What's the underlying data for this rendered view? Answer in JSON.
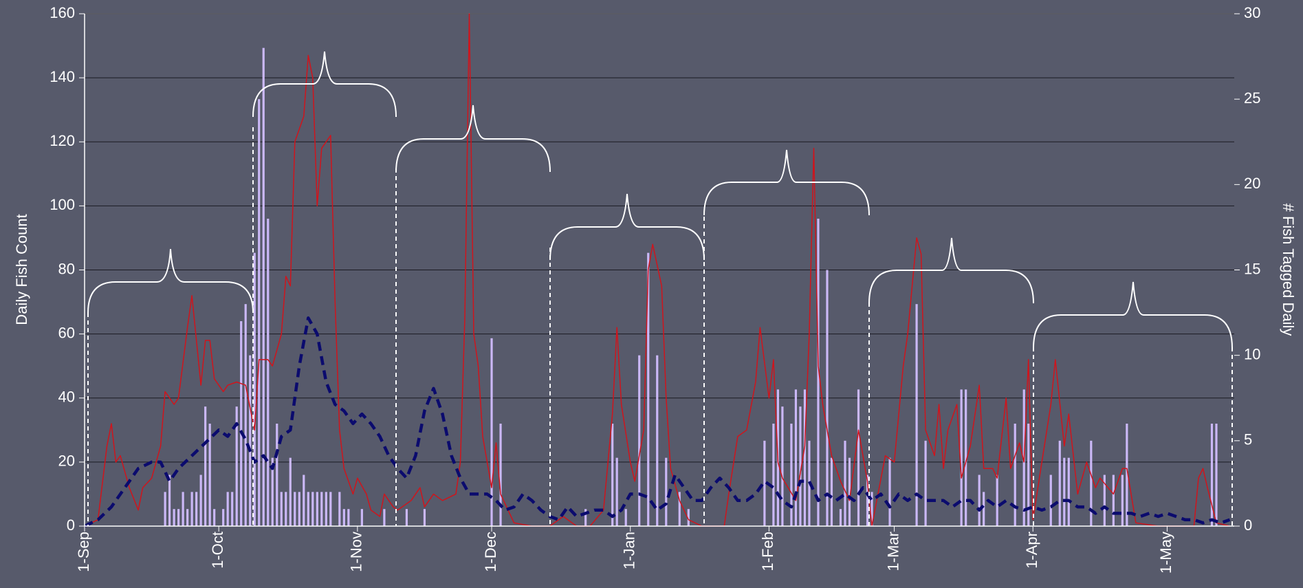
{
  "chart_data": {
    "type": "combo",
    "ylabel": "Daily Fish Count",
    "y2label": "# Fish Tagged Daily",
    "ylim": [
      0,
      160
    ],
    "yticks": [
      0,
      20,
      40,
      60,
      80,
      100,
      120,
      140,
      160
    ],
    "y2lim": [
      0,
      30
    ],
    "y2ticks": [
      0,
      5,
      10,
      15,
      20,
      25,
      30
    ],
    "xlim": [
      0,
      257
    ],
    "xticks": [
      {
        "value": 0,
        "label": "1-Sep"
      },
      {
        "value": 30,
        "label": "1-Oct"
      },
      {
        "value": 61,
        "label": "1-Nov"
      },
      {
        "value": 91,
        "label": "1-Dec"
      },
      {
        "value": 122,
        "label": "1-Jan"
      },
      {
        "value": 153,
        "label": "1-Feb"
      },
      {
        "value": 181,
        "label": "1-Mar"
      },
      {
        "value": 212,
        "label": "1-Apr"
      },
      {
        "value": 242,
        "label": "1-May"
      }
    ],
    "grid": true,
    "series": [
      {
        "type": "bar",
        "axis": "y2",
        "color": "#cbb8f7",
        "x": [
          18,
          19,
          20,
          21,
          22,
          23,
          24,
          25,
          26,
          27,
          28,
          29,
          31,
          32,
          33,
          34,
          35,
          36,
          37,
          38,
          39,
          40,
          41,
          42,
          43,
          44,
          45,
          46,
          47,
          48,
          49,
          50,
          51,
          52,
          53,
          54,
          55,
          57,
          58,
          59,
          62,
          67,
          72,
          76,
          91,
          93,
          112,
          118,
          119,
          121,
          124,
          126,
          128,
          130,
          133,
          135,
          152,
          154,
          155,
          156,
          158,
          159,
          160,
          161,
          162,
          164,
          166,
          167,
          169,
          170,
          171,
          173,
          175,
          176,
          180,
          186,
          188,
          196,
          197,
          200,
          201,
          204,
          208,
          210,
          211,
          216,
          218,
          219,
          220,
          225,
          228,
          230,
          232,
          233,
          252,
          253
        ],
        "values": [
          2,
          3,
          1,
          1,
          2,
          1,
          2,
          2,
          3,
          7,
          6,
          1,
          1,
          2,
          2,
          7,
          12,
          13,
          10,
          16,
          25,
          28,
          18,
          4,
          6,
          2,
          2,
          4,
          2,
          2,
          3,
          2,
          2,
          2,
          2,
          2,
          2,
          2,
          1,
          1,
          1,
          1,
          1,
          1,
          11,
          6,
          1,
          6,
          4,
          1,
          10,
          16,
          10,
          4,
          2,
          1,
          5,
          6,
          8,
          7,
          6,
          8,
          7,
          8,
          5,
          18,
          15,
          4,
          1,
          5,
          4,
          8,
          3,
          2,
          4,
          13,
          5,
          8,
          8,
          3,
          2,
          3,
          6,
          8,
          6,
          3,
          5,
          4,
          4,
          5,
          3,
          3,
          3,
          6,
          6,
          6
        ]
      },
      {
        "type": "line",
        "color": "#d0141c",
        "width": 1.5,
        "x": [
          0,
          3,
          5,
          6,
          7,
          8,
          10,
          12,
          13,
          15,
          17,
          18,
          20,
          21,
          23,
          24,
          26,
          27,
          28,
          29,
          31,
          32,
          34,
          36,
          38,
          39,
          41,
          42,
          44,
          45,
          46,
          47,
          48,
          49,
          50,
          51,
          52,
          53,
          55,
          56,
          57,
          58,
          60,
          61,
          63,
          64,
          66,
          67,
          69,
          70,
          73,
          75,
          76,
          78,
          80,
          83,
          84,
          85,
          86,
          87,
          88,
          89,
          91,
          92,
          93,
          96,
          100,
          104,
          107,
          110,
          113,
          116,
          118,
          119,
          120,
          122,
          123,
          125,
          126,
          127,
          129,
          130,
          131,
          133,
          135,
          138,
          143,
          144,
          146,
          148,
          150,
          151,
          153,
          154,
          155,
          156,
          159,
          161,
          162,
          163,
          164,
          165,
          167,
          169,
          171,
          173,
          175,
          176,
          179,
          181,
          183,
          184,
          186,
          187,
          188,
          190,
          191,
          192,
          193,
          195,
          196,
          198,
          200,
          201,
          203,
          204,
          206,
          207,
          209,
          210,
          211,
          212,
          214,
          216,
          217,
          219,
          220,
          222,
          224,
          226,
          227,
          230,
          232,
          233,
          235,
          240,
          246,
          248,
          249,
          250,
          251,
          253,
          256
        ],
        "values": [
          0,
          2,
          25,
          32,
          20,
          22,
          12,
          5,
          12,
          15,
          25,
          42,
          38,
          40,
          62,
          72,
          44,
          58,
          58,
          46,
          42,
          44,
          45,
          44,
          30,
          52,
          52,
          50,
          60,
          78,
          75,
          120,
          124,
          128,
          147,
          140,
          100,
          118,
          122,
          70,
          30,
          18,
          10,
          15,
          10,
          5,
          3,
          10,
          6,
          5,
          8,
          12,
          6,
          10,
          8,
          10,
          20,
          65,
          160,
          60,
          50,
          28,
          12,
          26,
          10,
          1,
          0,
          0,
          3,
          0,
          0,
          5,
          35,
          62,
          38,
          20,
          14,
          30,
          80,
          88,
          75,
          40,
          18,
          8,
          2,
          0,
          0,
          10,
          28,
          30,
          45,
          62,
          40,
          52,
          20,
          15,
          8,
          25,
          60,
          118,
          50,
          38,
          22,
          14,
          8,
          30,
          14,
          0,
          22,
          20,
          50,
          60,
          90,
          85,
          30,
          22,
          38,
          18,
          30,
          38,
          15,
          25,
          44,
          18,
          18,
          15,
          40,
          18,
          26,
          20,
          52,
          2,
          20,
          38,
          52,
          25,
          35,
          10,
          20,
          12,
          15,
          10,
          18,
          18,
          1,
          0,
          0,
          0,
          15,
          18,
          12,
          1,
          0
        ]
      },
      {
        "type": "line",
        "color": "#0b0b6e",
        "width": 4.5,
        "dashed": true,
        "x": [
          0,
          3,
          6,
          9,
          12,
          15,
          17,
          19,
          21,
          24,
          27,
          30,
          32,
          34,
          36,
          38,
          40,
          42,
          44,
          46,
          48,
          50,
          52,
          54,
          56,
          58,
          60,
          62,
          64,
          66,
          68,
          70,
          72,
          74,
          76,
          78,
          80,
          82,
          84,
          86,
          88,
          90,
          92,
          94,
          96,
          98,
          100,
          102,
          104,
          106,
          108,
          110,
          112,
          114,
          116,
          118,
          120,
          122,
          124,
          126,
          128,
          130,
          132,
          134,
          136,
          138,
          140,
          142,
          144,
          146,
          148,
          150,
          152,
          154,
          156,
          158,
          160,
          162,
          164,
          166,
          168,
          170,
          172,
          174,
          176,
          178,
          180,
          182,
          184,
          186,
          188,
          190,
          192,
          194,
          196,
          198,
          200,
          202,
          204,
          206,
          208,
          210,
          212,
          214,
          216,
          218,
          220,
          222,
          224,
          226,
          228,
          230,
          232,
          234,
          236,
          238,
          240,
          242,
          244,
          246,
          248,
          250,
          252,
          254,
          256
        ],
        "values": [
          0,
          2,
          6,
          12,
          18,
          20,
          20,
          14,
          18,
          22,
          26,
          30,
          28,
          32,
          27,
          20,
          22,
          18,
          28,
          30,
          50,
          65,
          60,
          45,
          38,
          36,
          32,
          35,
          32,
          28,
          22,
          18,
          15,
          22,
          36,
          43,
          35,
          22,
          15,
          10,
          10,
          10,
          8,
          5,
          6,
          10,
          8,
          5,
          3,
          2,
          6,
          3,
          4,
          5,
          5,
          3,
          5,
          10,
          10,
          9,
          5,
          7,
          16,
          12,
          8,
          8,
          12,
          15,
          12,
          8,
          8,
          10,
          14,
          12,
          8,
          6,
          14,
          14,
          8,
          10,
          8,
          10,
          8,
          12,
          8,
          10,
          6,
          10,
          8,
          10,
          8,
          8,
          8,
          6,
          8,
          8,
          5,
          8,
          6,
          8,
          6,
          5,
          6,
          5,
          6,
          8,
          8,
          6,
          6,
          4,
          6,
          4,
          4,
          4,
          3,
          4,
          3,
          4,
          3,
          2,
          2,
          1,
          2,
          1,
          2
        ]
      }
    ]
  }
}
